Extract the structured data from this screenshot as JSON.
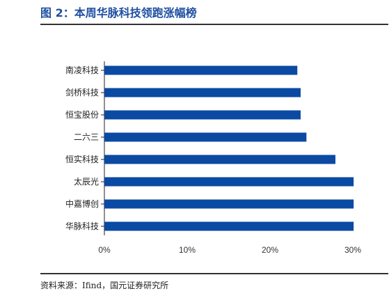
{
  "header": {
    "title": "图 2：本周华脉科技领跑涨幅榜"
  },
  "footer": {
    "source": "资料来源：Ifind，国元证券研究所"
  },
  "chart_data": {
    "type": "bar",
    "orientation": "horizontal",
    "title": "图 2：本周华脉科技领跑涨幅榜",
    "categories": [
      "南凌科技",
      "剑桥科技",
      "恒宝股份",
      "二六三",
      "恒实科技",
      "太辰光",
      "中嘉博创",
      "华脉科技"
    ],
    "values": [
      0.233,
      0.237,
      0.237,
      0.244,
      0.279,
      0.301,
      0.301,
      0.301
    ],
    "xlim": [
      0,
      0.3
    ],
    "xticks": [
      0,
      0.1,
      0.2,
      0.3
    ],
    "xtick_labels": [
      "0%",
      "10%",
      "20%",
      "30%"
    ],
    "bar_color": "#0b4aa2",
    "grid": false,
    "legend": "none"
  }
}
